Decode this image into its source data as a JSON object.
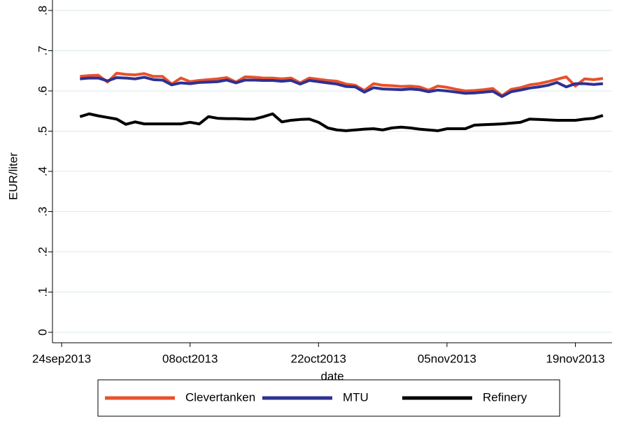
{
  "chart_data": {
    "type": "line",
    "y_label": "EUR/liter",
    "x_label": "date",
    "x": [
      "2013-09-26",
      "2013-09-27",
      "2013-09-28",
      "2013-09-29",
      "2013-09-30",
      "2013-10-01",
      "2013-10-02",
      "2013-10-03",
      "2013-10-04",
      "2013-10-05",
      "2013-10-06",
      "2013-10-07",
      "2013-10-08",
      "2013-10-09",
      "2013-10-10",
      "2013-10-11",
      "2013-10-12",
      "2013-10-13",
      "2013-10-14",
      "2013-10-15",
      "2013-10-16",
      "2013-10-17",
      "2013-10-18",
      "2013-10-19",
      "2013-10-20",
      "2013-10-21",
      "2013-10-22",
      "2013-10-23",
      "2013-10-24",
      "2013-10-25",
      "2013-10-26",
      "2013-10-27",
      "2013-10-28",
      "2013-10-29",
      "2013-10-30",
      "2013-10-31",
      "2013-11-01",
      "2013-11-02",
      "2013-11-03",
      "2013-11-04",
      "2013-11-05",
      "2013-11-06",
      "2013-11-07",
      "2013-11-08",
      "2013-11-09",
      "2013-11-10",
      "2013-11-11",
      "2013-11-12",
      "2013-11-13",
      "2013-11-14",
      "2013-11-15",
      "2013-11-16",
      "2013-11-17",
      "2013-11-18",
      "2013-11-19",
      "2013-11-20",
      "2013-11-21",
      "2013-11-22"
    ],
    "series": [
      {
        "name": "Clevertanken",
        "color": "#e8512b",
        "values": [
          0.636,
          0.638,
          0.639,
          0.622,
          0.644,
          0.641,
          0.64,
          0.643,
          0.636,
          0.636,
          0.617,
          0.632,
          0.623,
          0.626,
          0.628,
          0.63,
          0.633,
          0.622,
          0.635,
          0.634,
          0.632,
          0.632,
          0.63,
          0.632,
          0.62,
          0.632,
          0.629,
          0.626,
          0.624,
          0.617,
          0.614,
          0.601,
          0.618,
          0.614,
          0.613,
          0.611,
          0.612,
          0.61,
          0.602,
          0.612,
          0.609,
          0.604,
          0.6,
          0.601,
          0.603,
          0.606,
          0.588,
          0.604,
          0.608,
          0.615,
          0.618,
          0.623,
          0.629,
          0.635,
          0.612,
          0.63,
          0.628,
          0.631
        ]
      },
      {
        "name": "MTU",
        "color": "#2e3192",
        "values": [
          0.63,
          0.632,
          0.632,
          0.625,
          0.633,
          0.632,
          0.63,
          0.634,
          0.628,
          0.627,
          0.615,
          0.62,
          0.618,
          0.621,
          0.622,
          0.623,
          0.627,
          0.62,
          0.627,
          0.627,
          0.626,
          0.626,
          0.624,
          0.626,
          0.617,
          0.626,
          0.623,
          0.62,
          0.617,
          0.611,
          0.61,
          0.597,
          0.608,
          0.605,
          0.604,
          0.603,
          0.605,
          0.603,
          0.598,
          0.602,
          0.6,
          0.597,
          0.594,
          0.595,
          0.597,
          0.599,
          0.586,
          0.598,
          0.602,
          0.607,
          0.61,
          0.614,
          0.621,
          0.61,
          0.618,
          0.618,
          0.616,
          0.618
        ]
      },
      {
        "name": "Refinery",
        "color": "#000000",
        "values": [
          0.536,
          0.543,
          0.538,
          0.534,
          0.53,
          0.517,
          0.523,
          0.518,
          0.518,
          0.518,
          0.518,
          0.518,
          0.522,
          0.518,
          0.536,
          0.532,
          0.531,
          0.531,
          0.53,
          0.53,
          0.536,
          0.543,
          0.523,
          0.527,
          0.529,
          0.53,
          0.522,
          0.508,
          0.503,
          0.501,
          0.503,
          0.505,
          0.506,
          0.503,
          0.508,
          0.51,
          0.508,
          0.505,
          0.503,
          0.501,
          0.506,
          0.506,
          0.506,
          0.515,
          0.516,
          0.517,
          0.518,
          0.52,
          0.522,
          0.53,
          0.529,
          0.528,
          0.527,
          0.527,
          0.527,
          0.53,
          0.532,
          0.539
        ]
      }
    ],
    "ylim": [
      -0.026,
      0.826
    ],
    "yticks": [
      0,
      {
        "value": 0.1,
        "label": ".1"
      },
      {
        "value": 0.2,
        "label": ".2"
      },
      {
        "value": 0.3,
        "label": ".3"
      },
      {
        "value": 0.4,
        "label": ".4"
      },
      {
        "value": 0.5,
        "label": ".5"
      },
      {
        "value": 0.6,
        "label": ".6"
      },
      {
        "value": 0.7,
        "label": ".7"
      },
      {
        "value": 0.8,
        "label": ".8"
      }
    ],
    "xlim": [
      "2013-09-23",
      "2013-11-23"
    ],
    "xticks": [
      {
        "value": "2013-09-24",
        "label": "24sep2013"
      },
      {
        "value": "2013-10-08",
        "label": "08oct2013"
      },
      {
        "value": "2013-10-22",
        "label": "22oct2013"
      },
      {
        "value": "2013-11-05",
        "label": "05nov2013"
      },
      {
        "value": "2013-11-19",
        "label": "19nov2013"
      }
    ],
    "grid": true,
    "legend": "bottom"
  }
}
